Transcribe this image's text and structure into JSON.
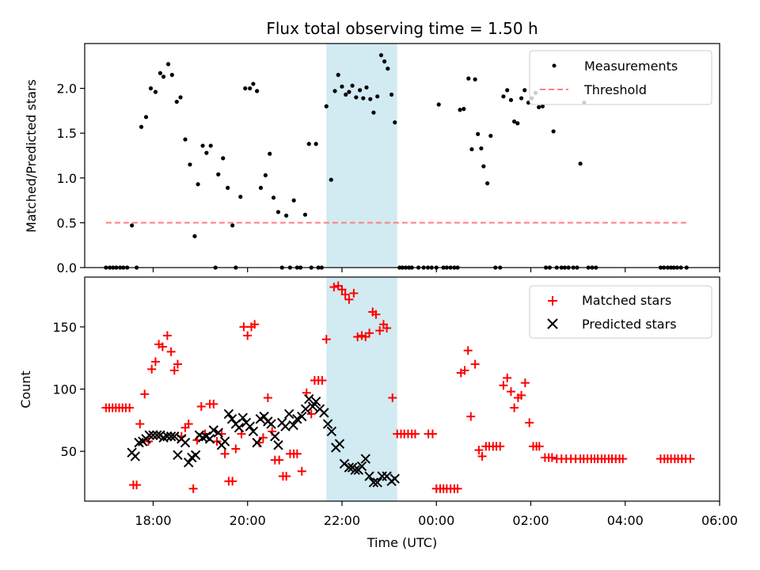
{
  "title": "Flux total observing time = 1.50 h",
  "xlabel": "Time (UTC)",
  "x_tick_labels": [
    "18:00",
    "20:00",
    "22:00",
    "00:00",
    "02:00",
    "04:00",
    "06:00"
  ],
  "colors": {
    "measurement": "#000000",
    "threshold": "#ff7f7f",
    "matched": "#ff0000",
    "predicted": "#000000",
    "highlight": "#add8e6"
  },
  "highlight_span_hours": [
    21.67,
    23.17
  ],
  "chart_data": [
    {
      "type": "scatter",
      "panel": "top",
      "ylabel": "Matched/Predicted stars",
      "xlim_hours": [
        16.55,
        30.0
      ],
      "ylim": [
        0,
        2.5
      ],
      "y_tick_labels": [
        "0.0",
        "0.5",
        "1.0",
        "1.5",
        "2.0"
      ],
      "legend": {
        "position": "top-right",
        "measurements": "Measurements",
        "threshold": "Threshold"
      },
      "threshold": {
        "value": 0.5,
        "x_range_hours": [
          17.0,
          29.3
        ]
      },
      "measurements": [
        [
          17.0,
          0
        ],
        [
          17.08,
          0
        ],
        [
          17.15,
          0
        ],
        [
          17.22,
          0
        ],
        [
          17.3,
          0
        ],
        [
          17.37,
          0
        ],
        [
          17.45,
          0
        ],
        [
          17.55,
          0.47
        ],
        [
          17.65,
          0
        ],
        [
          17.75,
          1.57
        ],
        [
          17.85,
          1.68
        ],
        [
          17.95,
          2.0
        ],
        [
          18.05,
          1.96
        ],
        [
          18.15,
          2.17
        ],
        [
          18.22,
          2.13
        ],
        [
          18.32,
          2.27
        ],
        [
          18.4,
          2.15
        ],
        [
          18.5,
          1.85
        ],
        [
          18.58,
          1.9
        ],
        [
          18.68,
          1.43
        ],
        [
          18.78,
          1.15
        ],
        [
          18.88,
          0.35
        ],
        [
          18.95,
          0.93
        ],
        [
          19.05,
          1.36
        ],
        [
          19.13,
          1.28
        ],
        [
          19.22,
          1.36
        ],
        [
          19.32,
          0
        ],
        [
          19.38,
          1.04
        ],
        [
          19.48,
          1.22
        ],
        [
          19.58,
          0.89
        ],
        [
          19.68,
          0.47
        ],
        [
          19.75,
          0
        ],
        [
          19.85,
          0.79
        ],
        [
          19.95,
          2.0
        ],
        [
          20.05,
          2.0
        ],
        [
          20.12,
          2.05
        ],
        [
          20.2,
          1.97
        ],
        [
          20.28,
          0.89
        ],
        [
          20.38,
          1.03
        ],
        [
          20.47,
          1.27
        ],
        [
          20.55,
          0.78
        ],
        [
          20.65,
          0.62
        ],
        [
          20.73,
          0
        ],
        [
          20.82,
          0.58
        ],
        [
          20.9,
          0
        ],
        [
          20.98,
          0.75
        ],
        [
          21.05,
          0
        ],
        [
          21.12,
          0
        ],
        [
          21.22,
          0.59
        ],
        [
          21.3,
          1.38
        ],
        [
          21.35,
          0
        ],
        [
          21.45,
          1.38
        ],
        [
          21.5,
          0
        ],
        [
          21.57,
          0
        ],
        [
          21.67,
          1.8
        ],
        [
          21.77,
          0.98
        ],
        [
          21.85,
          1.97
        ],
        [
          21.92,
          2.15
        ],
        [
          22.0,
          2.02
        ],
        [
          22.08,
          1.93
        ],
        [
          22.15,
          1.96
        ],
        [
          22.22,
          2.03
        ],
        [
          22.3,
          1.9
        ],
        [
          22.38,
          1.98
        ],
        [
          22.45,
          1.89
        ],
        [
          22.52,
          2.01
        ],
        [
          22.6,
          1.88
        ],
        [
          22.67,
          1.73
        ],
        [
          22.75,
          1.91
        ],
        [
          22.83,
          2.37
        ],
        [
          22.9,
          2.3
        ],
        [
          22.97,
          2.22
        ],
        [
          23.05,
          1.93
        ],
        [
          23.12,
          1.62
        ],
        [
          23.22,
          0
        ],
        [
          23.28,
          0
        ],
        [
          23.35,
          0
        ],
        [
          23.42,
          0
        ],
        [
          23.48,
          0
        ],
        [
          23.62,
          0
        ],
        [
          23.73,
          0
        ],
        [
          23.82,
          0
        ],
        [
          23.9,
          0
        ],
        [
          24.0,
          0
        ],
        [
          24.05,
          1.82
        ],
        [
          24.15,
          0
        ],
        [
          24.22,
          0
        ],
        [
          24.3,
          0
        ],
        [
          24.38,
          0
        ],
        [
          24.45,
          0
        ],
        [
          24.5,
          1.76
        ],
        [
          24.58,
          1.77
        ],
        [
          24.68,
          2.11
        ],
        [
          24.75,
          1.32
        ],
        [
          24.82,
          2.1
        ],
        [
          24.88,
          1.49
        ],
        [
          24.95,
          1.33
        ],
        [
          25.0,
          1.13
        ],
        [
          25.08,
          0.94
        ],
        [
          25.15,
          1.47
        ],
        [
          25.25,
          0
        ],
        [
          25.35,
          0
        ],
        [
          25.42,
          1.91
        ],
        [
          25.5,
          1.98
        ],
        [
          25.58,
          1.87
        ],
        [
          25.65,
          1.63
        ],
        [
          25.72,
          1.61
        ],
        [
          25.8,
          1.89
        ],
        [
          25.87,
          1.98
        ],
        [
          25.95,
          1.84
        ],
        [
          26.02,
          1.89
        ],
        [
          26.1,
          1.95
        ],
        [
          26.17,
          1.79
        ],
        [
          26.25,
          1.8
        ],
        [
          26.32,
          0
        ],
        [
          26.4,
          0
        ],
        [
          26.48,
          1.52
        ],
        [
          26.55,
          0
        ],
        [
          26.65,
          0
        ],
        [
          26.72,
          0
        ],
        [
          26.8,
          0
        ],
        [
          26.9,
          0
        ],
        [
          26.98,
          0
        ],
        [
          27.05,
          1.16
        ],
        [
          27.13,
          1.84
        ],
        [
          27.22,
          0
        ],
        [
          27.3,
          0
        ],
        [
          27.38,
          0
        ],
        [
          28.75,
          0
        ],
        [
          28.82,
          0
        ],
        [
          28.9,
          0
        ],
        [
          28.97,
          0
        ],
        [
          29.03,
          0
        ],
        [
          29.1,
          0
        ],
        [
          29.18,
          0
        ],
        [
          29.3,
          0
        ]
      ]
    },
    {
      "type": "scatter",
      "panel": "bottom",
      "ylabel": "Count",
      "xlim_hours": [
        16.55,
        30.0
      ],
      "ylim": [
        10,
        190
      ],
      "y_tick_labels": [
        "50",
        "100",
        "150"
      ],
      "legend": {
        "position": "top-right",
        "matched": "Matched stars",
        "predicted": "Predicted stars"
      },
      "matched": [
        [
          17.0,
          85
        ],
        [
          17.07,
          85
        ],
        [
          17.14,
          85
        ],
        [
          17.21,
          85
        ],
        [
          17.28,
          85
        ],
        [
          17.35,
          85
        ],
        [
          17.42,
          85
        ],
        [
          17.5,
          85
        ],
        [
          17.58,
          23
        ],
        [
          17.65,
          23
        ],
        [
          17.72,
          72
        ],
        [
          17.82,
          96
        ],
        [
          17.9,
          58
        ],
        [
          17.97,
          116
        ],
        [
          18.05,
          122
        ],
        [
          18.12,
          136
        ],
        [
          18.2,
          134
        ],
        [
          18.3,
          143
        ],
        [
          18.38,
          130
        ],
        [
          18.45,
          115
        ],
        [
          18.52,
          120
        ],
        [
          18.6,
          62
        ],
        [
          18.68,
          69
        ],
        [
          18.75,
          72
        ],
        [
          18.85,
          20
        ],
        [
          18.93,
          59
        ],
        [
          19.02,
          86
        ],
        [
          19.1,
          64
        ],
        [
          19.2,
          88
        ],
        [
          19.28,
          88
        ],
        [
          19.35,
          58
        ],
        [
          19.45,
          64
        ],
        [
          19.52,
          48
        ],
        [
          19.6,
          26
        ],
        [
          19.68,
          26
        ],
        [
          19.75,
          52
        ],
        [
          19.87,
          64
        ],
        [
          19.92,
          150
        ],
        [
          20.0,
          143
        ],
        [
          20.08,
          150
        ],
        [
          20.15,
          152
        ],
        [
          20.25,
          57
        ],
        [
          20.33,
          61
        ],
        [
          20.43,
          93
        ],
        [
          20.52,
          66
        ],
        [
          20.58,
          43
        ],
        [
          20.67,
          43
        ],
        [
          20.75,
          30
        ],
        [
          20.82,
          30
        ],
        [
          20.9,
          48
        ],
        [
          20.98,
          48
        ],
        [
          21.05,
          48
        ],
        [
          21.15,
          34
        ],
        [
          21.25,
          97
        ],
        [
          21.35,
          80
        ],
        [
          21.42,
          107
        ],
        [
          21.5,
          107
        ],
        [
          21.58,
          107
        ],
        [
          21.67,
          140
        ],
        [
          21.83,
          182
        ],
        [
          21.92,
          183
        ],
        [
          22.0,
          180
        ],
        [
          22.07,
          176
        ],
        [
          22.15,
          172
        ],
        [
          22.25,
          177
        ],
        [
          22.33,
          142
        ],
        [
          22.42,
          143
        ],
        [
          22.5,
          142
        ],
        [
          22.58,
          145
        ],
        [
          22.65,
          162
        ],
        [
          22.72,
          160
        ],
        [
          22.8,
          147
        ],
        [
          22.88,
          152
        ],
        [
          22.95,
          149
        ],
        [
          23.07,
          93
        ],
        [
          23.17,
          64
        ],
        [
          23.25,
          64
        ],
        [
          23.32,
          64
        ],
        [
          23.4,
          64
        ],
        [
          23.48,
          64
        ],
        [
          23.55,
          64
        ],
        [
          23.83,
          64
        ],
        [
          23.92,
          64
        ],
        [
          24.0,
          20
        ],
        [
          24.08,
          20
        ],
        [
          24.15,
          20
        ],
        [
          24.22,
          20
        ],
        [
          24.3,
          20
        ],
        [
          24.38,
          20
        ],
        [
          24.45,
          20
        ],
        [
          24.52,
          113
        ],
        [
          24.6,
          115
        ],
        [
          24.67,
          131
        ],
        [
          24.73,
          78
        ],
        [
          24.82,
          120
        ],
        [
          24.9,
          51
        ],
        [
          24.97,
          46
        ],
        [
          25.05,
          54
        ],
        [
          25.12,
          54
        ],
        [
          25.2,
          54
        ],
        [
          25.27,
          54
        ],
        [
          25.35,
          54
        ],
        [
          25.42,
          103
        ],
        [
          25.5,
          109
        ],
        [
          25.58,
          98
        ],
        [
          25.65,
          85
        ],
        [
          25.73,
          93
        ],
        [
          25.8,
          95
        ],
        [
          25.88,
          105
        ],
        [
          25.97,
          73
        ],
        [
          26.05,
          54
        ],
        [
          26.12,
          54
        ],
        [
          26.18,
          54
        ],
        [
          26.3,
          45
        ],
        [
          26.38,
          45
        ],
        [
          26.45,
          45
        ],
        [
          26.55,
          44
        ],
        [
          26.65,
          44
        ],
        [
          26.75,
          44
        ],
        [
          26.85,
          44
        ],
        [
          26.95,
          44
        ],
        [
          27.05,
          44
        ],
        [
          27.12,
          44
        ],
        [
          27.2,
          44
        ],
        [
          27.28,
          44
        ],
        [
          27.35,
          44
        ],
        [
          27.42,
          44
        ],
        [
          27.5,
          44
        ],
        [
          27.57,
          44
        ],
        [
          27.65,
          44
        ],
        [
          27.72,
          44
        ],
        [
          27.8,
          44
        ],
        [
          27.88,
          44
        ],
        [
          27.95,
          44
        ],
        [
          28.75,
          44
        ],
        [
          28.83,
          44
        ],
        [
          28.9,
          44
        ],
        [
          28.97,
          44
        ],
        [
          29.05,
          44
        ],
        [
          29.12,
          44
        ],
        [
          29.2,
          44
        ],
        [
          29.28,
          44
        ],
        [
          29.38,
          44
        ]
      ],
      "predicted": [
        [
          17.55,
          49
        ],
        [
          17.62,
          46
        ],
        [
          17.7,
          57
        ],
        [
          17.78,
          58
        ],
        [
          17.85,
          60
        ],
        [
          17.92,
          63
        ],
        [
          18.0,
          63
        ],
        [
          18.08,
          63
        ],
        [
          18.15,
          63
        ],
        [
          18.22,
          61
        ],
        [
          18.3,
          62
        ],
        [
          18.38,
          62
        ],
        [
          18.45,
          62
        ],
        [
          18.52,
          47
        ],
        [
          18.6,
          60
        ],
        [
          18.68,
          57
        ],
        [
          18.75,
          41
        ],
        [
          18.82,
          45
        ],
        [
          18.9,
          47
        ],
        [
          18.98,
          63
        ],
        [
          19.05,
          61
        ],
        [
          19.12,
          62
        ],
        [
          19.2,
          60
        ],
        [
          19.28,
          67
        ],
        [
          19.38,
          65
        ],
        [
          19.45,
          55
        ],
        [
          19.52,
          58
        ],
        [
          19.6,
          80
        ],
        [
          19.67,
          76
        ],
        [
          19.75,
          72
        ],
        [
          19.82,
          69
        ],
        [
          19.9,
          77
        ],
        [
          19.97,
          73
        ],
        [
          20.05,
          70
        ],
        [
          20.12,
          66
        ],
        [
          20.2,
          57
        ],
        [
          20.27,
          76
        ],
        [
          20.35,
          78
        ],
        [
          20.43,
          74
        ],
        [
          20.5,
          72
        ],
        [
          20.58,
          62
        ],
        [
          20.65,
          55
        ],
        [
          20.73,
          73
        ],
        [
          20.8,
          70
        ],
        [
          20.88,
          80
        ],
        [
          20.97,
          71
        ],
        [
          21.05,
          76
        ],
        [
          21.15,
          78
        ],
        [
          21.23,
          84
        ],
        [
          21.3,
          92
        ],
        [
          21.38,
          86
        ],
        [
          21.45,
          90
        ],
        [
          21.53,
          84
        ],
        [
          21.62,
          81
        ],
        [
          21.7,
          72
        ],
        [
          21.78,
          66
        ],
        [
          21.87,
          53
        ],
        [
          21.95,
          56
        ],
        [
          22.05,
          40
        ],
        [
          22.15,
          37
        ],
        [
          22.22,
          37
        ],
        [
          22.28,
          35
        ],
        [
          22.35,
          35
        ],
        [
          22.42,
          38
        ],
        [
          22.5,
          44
        ],
        [
          22.58,
          30
        ],
        [
          22.67,
          25
        ],
        [
          22.75,
          25
        ],
        [
          22.85,
          30
        ],
        [
          22.95,
          30
        ],
        [
          23.05,
          26
        ],
        [
          23.12,
          28
        ]
      ]
    }
  ]
}
